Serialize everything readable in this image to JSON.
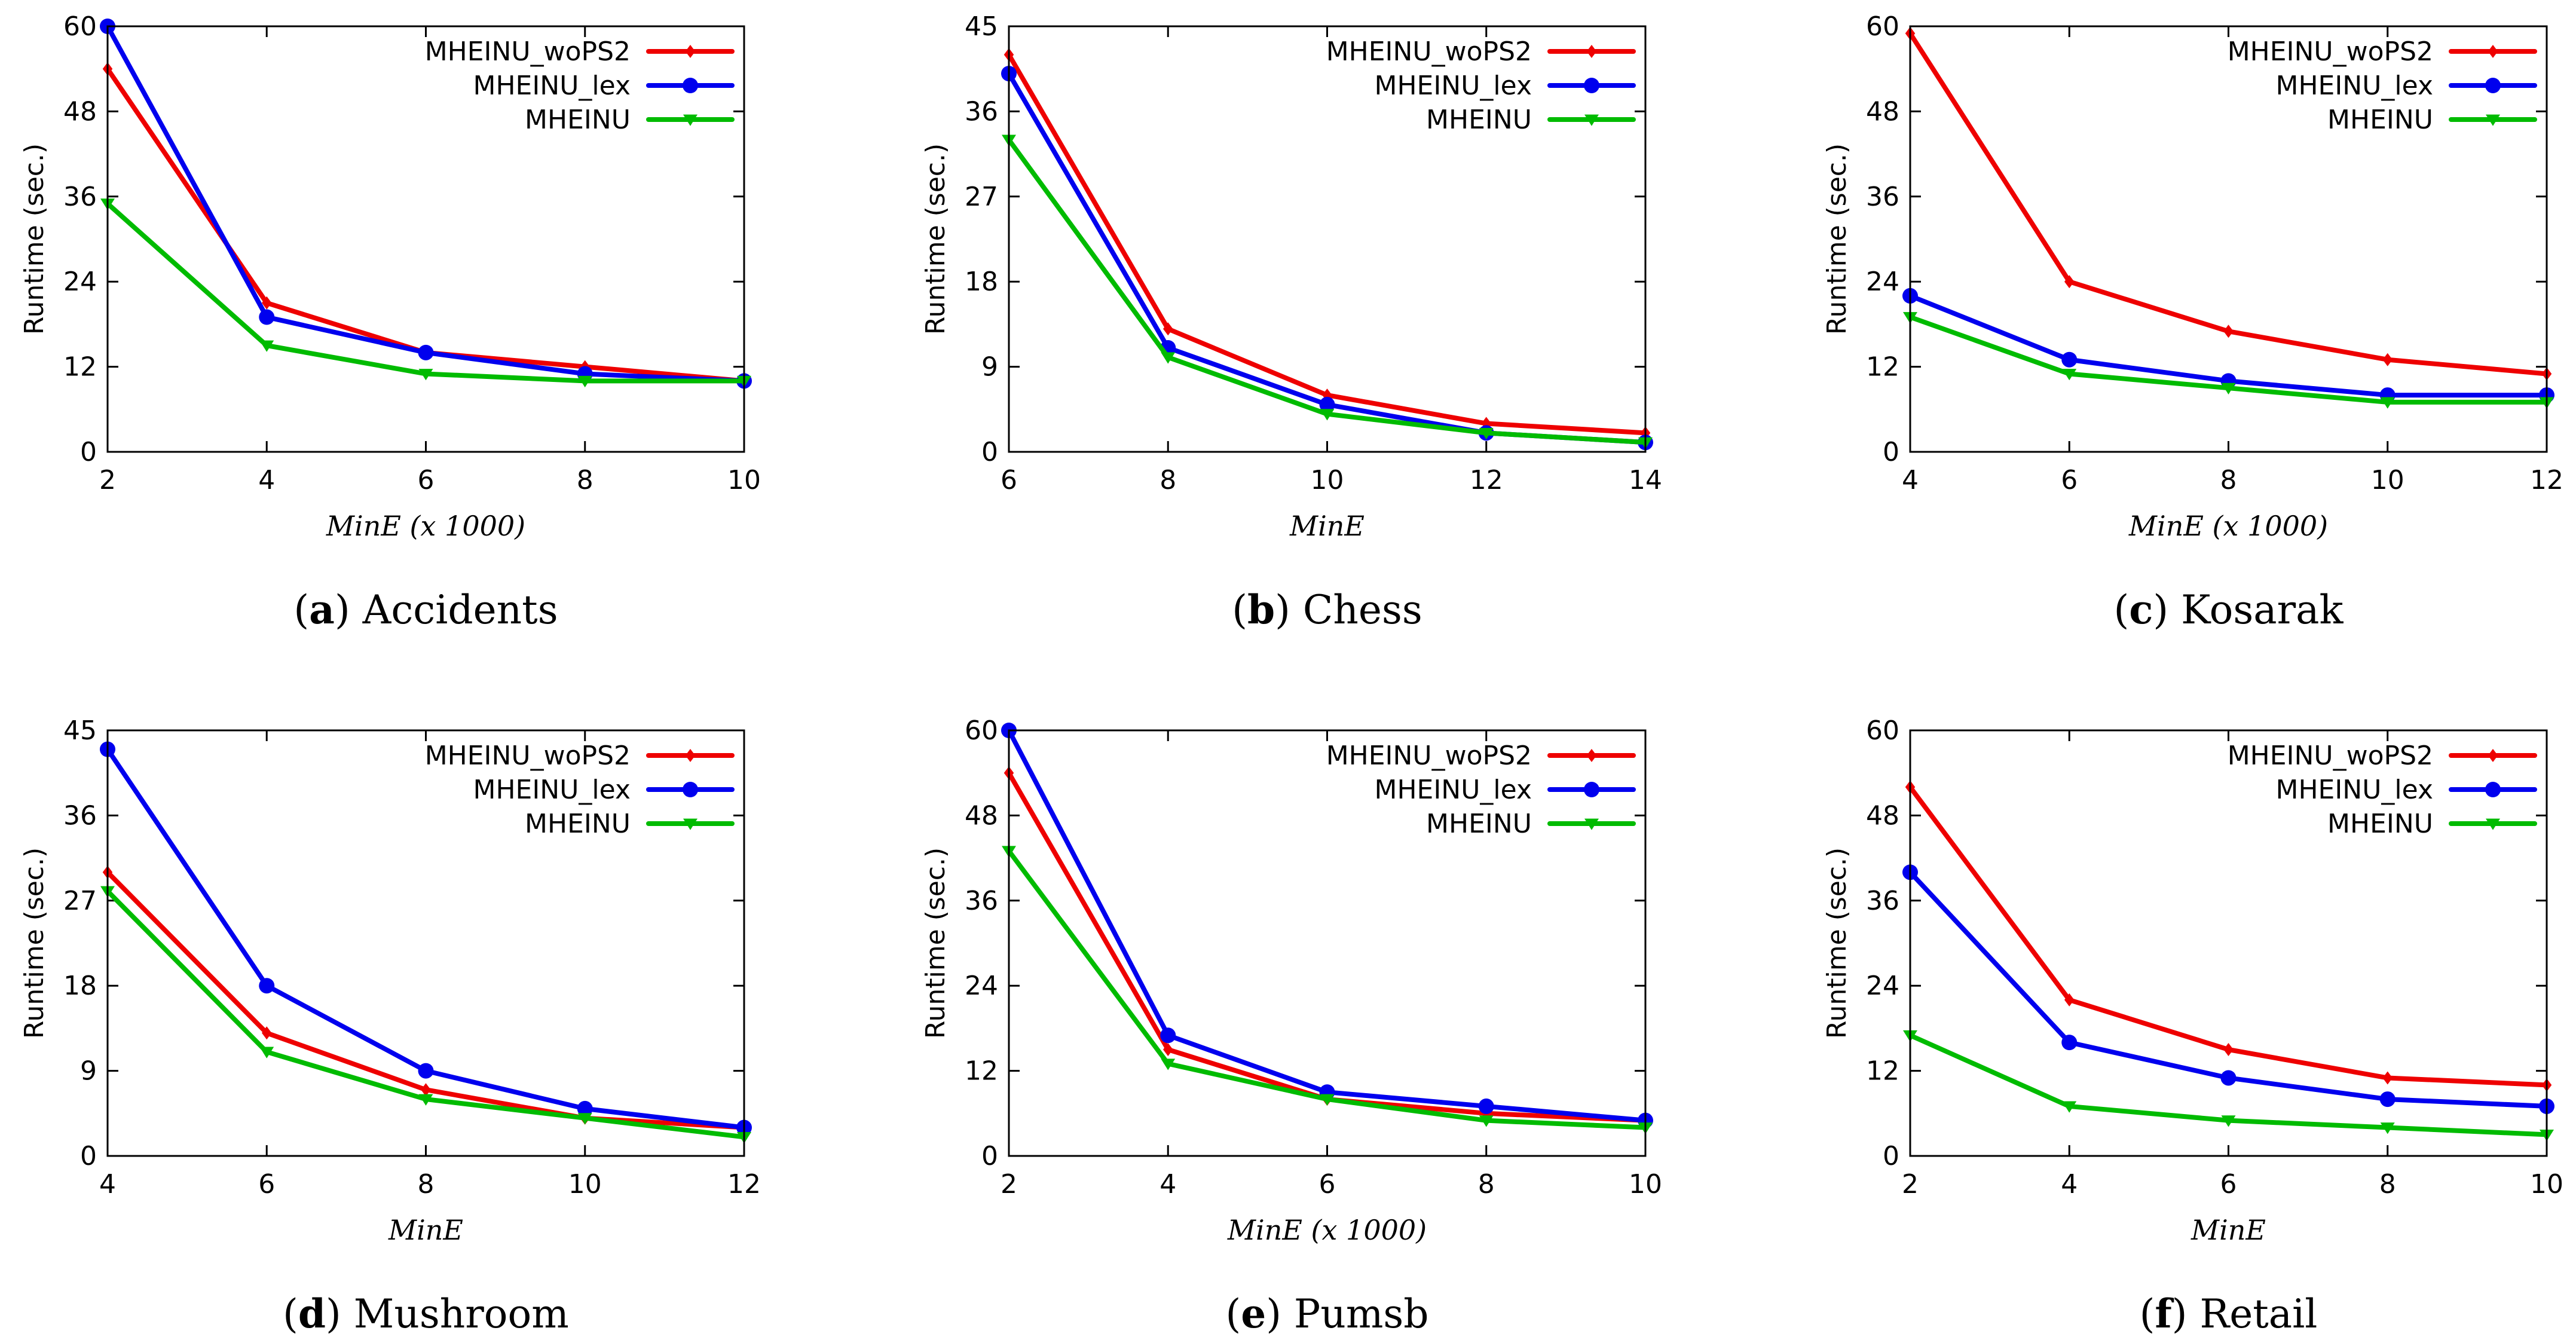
{
  "figure": {
    "colors": {
      "woPS2": "#ee0000",
      "lex": "#0000ee",
      "mheinu": "#00bb00",
      "axis": "#000000"
    }
  },
  "chart_data": [
    {
      "type": "line",
      "panel": "a",
      "caption": "Accidents",
      "xlabel": "MinE (x 1000)",
      "ylabel": "Runtime (sec.)",
      "x": [
        2,
        4,
        6,
        8,
        10
      ],
      "xlim": [
        2,
        10
      ],
      "xticks": [
        2,
        4,
        6,
        8,
        10
      ],
      "ylim": [
        0,
        60
      ],
      "yticks": [
        0,
        12,
        24,
        36,
        48,
        60
      ],
      "legend_position": "top-right",
      "series": [
        {
          "name": "MHEINU_woPS2",
          "color": "#ee0000",
          "marker": "diamond",
          "values": [
            54,
            21,
            14,
            12,
            10
          ]
        },
        {
          "name": "MHEINU_lex",
          "color": "#0000ee",
          "marker": "circle",
          "values": [
            60,
            19,
            14,
            11,
            10
          ]
        },
        {
          "name": "MHEINU",
          "color": "#00bb00",
          "marker": "triangle-down",
          "values": [
            35,
            15,
            11,
            10,
            10
          ]
        }
      ]
    },
    {
      "type": "line",
      "panel": "b",
      "caption": "Chess",
      "xlabel": "MinE",
      "ylabel": "Runtime (sec.)",
      "x": [
        6,
        8,
        10,
        12,
        14
      ],
      "xlim": [
        6,
        14
      ],
      "xticks": [
        6,
        8,
        10,
        12,
        14
      ],
      "ylim": [
        0,
        45
      ],
      "yticks": [
        0,
        9,
        18,
        27,
        36,
        45
      ],
      "legend_position": "top-right",
      "series": [
        {
          "name": "MHEINU_woPS2",
          "color": "#ee0000",
          "marker": "diamond",
          "values": [
            42,
            13,
            6,
            3,
            2
          ]
        },
        {
          "name": "MHEINU_lex",
          "color": "#0000ee",
          "marker": "circle",
          "values": [
            40,
            11,
            5,
            2,
            1
          ]
        },
        {
          "name": "MHEINU",
          "color": "#00bb00",
          "marker": "triangle-down",
          "values": [
            33,
            10,
            4,
            2,
            1
          ]
        }
      ]
    },
    {
      "type": "line",
      "panel": "c",
      "caption": "Kosarak",
      "xlabel": "MinE (x 1000)",
      "ylabel": "Runtime (sec.)",
      "x": [
        4,
        6,
        8,
        10,
        12
      ],
      "xlim": [
        4,
        12
      ],
      "xticks": [
        4,
        6,
        8,
        10,
        12
      ],
      "ylim": [
        0,
        60
      ],
      "yticks": [
        0,
        12,
        24,
        36,
        48,
        60
      ],
      "legend_position": "top-right",
      "series": [
        {
          "name": "MHEINU_woPS2",
          "color": "#ee0000",
          "marker": "diamond",
          "values": [
            59,
            24,
            17,
            13,
            11
          ]
        },
        {
          "name": "MHEINU_lex",
          "color": "#0000ee",
          "marker": "circle",
          "values": [
            22,
            13,
            10,
            8,
            8
          ]
        },
        {
          "name": "MHEINU",
          "color": "#00bb00",
          "marker": "triangle-down",
          "values": [
            19,
            11,
            9,
            7,
            7
          ]
        }
      ]
    },
    {
      "type": "line",
      "panel": "d",
      "caption": "Mushroom",
      "xlabel": "MinE",
      "ylabel": "Runtime (sec.)",
      "x": [
        4,
        6,
        8,
        10,
        12
      ],
      "xlim": [
        4,
        12
      ],
      "xticks": [
        4,
        6,
        8,
        10,
        12
      ],
      "ylim": [
        0,
        45
      ],
      "yticks": [
        0,
        9,
        18,
        27,
        36,
        45
      ],
      "legend_position": "top-right",
      "series": [
        {
          "name": "MHEINU_woPS2",
          "color": "#ee0000",
          "marker": "diamond",
          "values": [
            30,
            13,
            7,
            4,
            3
          ]
        },
        {
          "name": "MHEINU_lex",
          "color": "#0000ee",
          "marker": "circle",
          "values": [
            43,
            18,
            9,
            5,
            3
          ]
        },
        {
          "name": "MHEINU",
          "color": "#00bb00",
          "marker": "triangle-down",
          "values": [
            28,
            11,
            6,
            4,
            2
          ]
        }
      ]
    },
    {
      "type": "line",
      "panel": "e",
      "caption": "Pumsb",
      "xlabel": "MinE (x 1000)",
      "ylabel": "Runtime (sec.)",
      "x": [
        2,
        4,
        6,
        8,
        10
      ],
      "xlim": [
        2,
        10
      ],
      "xticks": [
        2,
        4,
        6,
        8,
        10
      ],
      "ylim": [
        0,
        60
      ],
      "yticks": [
        0,
        12,
        24,
        36,
        48,
        60
      ],
      "legend_position": "top-right",
      "series": [
        {
          "name": "MHEINU_woPS2",
          "color": "#ee0000",
          "marker": "diamond",
          "values": [
            54,
            15,
            8,
            6,
            5
          ]
        },
        {
          "name": "MHEINU_lex",
          "color": "#0000ee",
          "marker": "circle",
          "values": [
            60,
            17,
            9,
            7,
            5
          ]
        },
        {
          "name": "MHEINU",
          "color": "#00bb00",
          "marker": "triangle-down",
          "values": [
            43,
            13,
            8,
            5,
            4
          ]
        }
      ]
    },
    {
      "type": "line",
      "panel": "f",
      "caption": "Retail",
      "xlabel": "MinE",
      "ylabel": "Runtime (sec.)",
      "x": [
        2,
        4,
        6,
        8,
        10
      ],
      "xlim": [
        2,
        10
      ],
      "xticks": [
        2,
        4,
        6,
        8,
        10
      ],
      "ylim": [
        0,
        60
      ],
      "yticks": [
        0,
        12,
        24,
        36,
        48,
        60
      ],
      "legend_position": "top-right",
      "series": [
        {
          "name": "MHEINU_woPS2",
          "color": "#ee0000",
          "marker": "diamond",
          "values": [
            52,
            22,
            15,
            11,
            10
          ]
        },
        {
          "name": "MHEINU_lex",
          "color": "#0000ee",
          "marker": "circle",
          "values": [
            40,
            16,
            11,
            8,
            7
          ]
        },
        {
          "name": "MHEINU",
          "color": "#00bb00",
          "marker": "triangle-down",
          "values": [
            17,
            7,
            5,
            4,
            3
          ]
        }
      ]
    }
  ]
}
